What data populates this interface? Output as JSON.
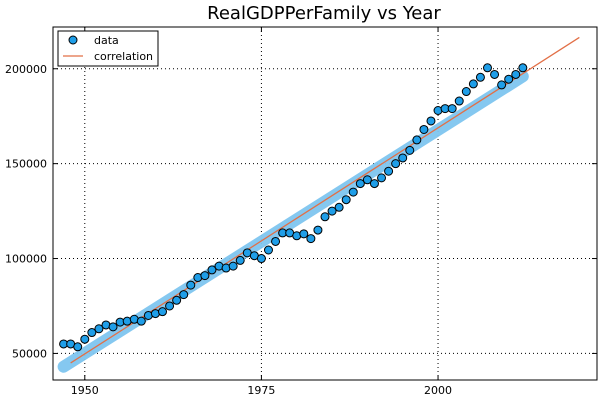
{
  "chart_data": {
    "type": "scatter",
    "title": "RealGDPPerFamily vs Year",
    "xlabel": "",
    "ylabel": "",
    "xlim": [
      1945.5,
      2022.5
    ],
    "ylim": [
      36000,
      222000
    ],
    "x_ticks": [
      1950,
      1975,
      2000
    ],
    "y_ticks": [
      50000,
      100000,
      150000,
      200000
    ],
    "x_tick_labels": [
      "1950",
      "1975",
      "2000"
    ],
    "y_tick_labels": [
      "50000",
      "100000",
      "150000",
      "200000"
    ],
    "grid": true,
    "legend": {
      "position": "top-left",
      "entries": [
        "data",
        "correlation"
      ]
    },
    "series": [
      {
        "name": "data",
        "kind": "points",
        "color": "#1f9ee8",
        "x": [
          1947,
          1948,
          1949,
          1950,
          1951,
          1952,
          1953,
          1954,
          1955,
          1956,
          1957,
          1958,
          1959,
          1960,
          1961,
          1962,
          1963,
          1964,
          1965,
          1966,
          1967,
          1968,
          1969,
          1970,
          1971,
          1972,
          1973,
          1974,
          1975,
          1976,
          1977,
          1978,
          1979,
          1980,
          1981,
          1982,
          1983,
          1984,
          1985,
          1986,
          1987,
          1988,
          1989,
          1990,
          1991,
          1992,
          1993,
          1994,
          1995,
          1996,
          1997,
          1998,
          1999,
          2000,
          2001,
          2002,
          2003,
          2004,
          2005,
          2006,
          2007,
          2008,
          2009,
          2010,
          2011,
          2012
        ],
        "y": [
          55000,
          55000,
          53500,
          57500,
          61000,
          63000,
          65000,
          64000,
          66500,
          67000,
          68000,
          67000,
          70000,
          71000,
          72000,
          75000,
          78000,
          81000,
          86000,
          90000,
          91000,
          94000,
          96000,
          95000,
          96000,
          99000,
          103000,
          101500,
          100000,
          104500,
          109000,
          113500,
          113500,
          112000,
          113000,
          110500,
          115000,
          122000,
          125000,
          127000,
          131000,
          135000,
          139500,
          141500,
          139500,
          142500,
          146000,
          150000,
          153000,
          157000,
          162500,
          168000,
          172500,
          178000,
          179000,
          179000,
          183000,
          188000,
          192000,
          195500,
          200500,
          197000,
          191500,
          194500,
          197000,
          200500
        ]
      },
      {
        "name": "correlation",
        "kind": "line",
        "color": "#e26f46",
        "x": [
          1948,
          2020
        ],
        "y": [
          45000,
          216500
        ]
      },
      {
        "name": "",
        "kind": "band",
        "color": "#7fc6f0",
        "x": [
          1947,
          2012
        ],
        "y": [
          43000,
          196000
        ]
      }
    ]
  }
}
